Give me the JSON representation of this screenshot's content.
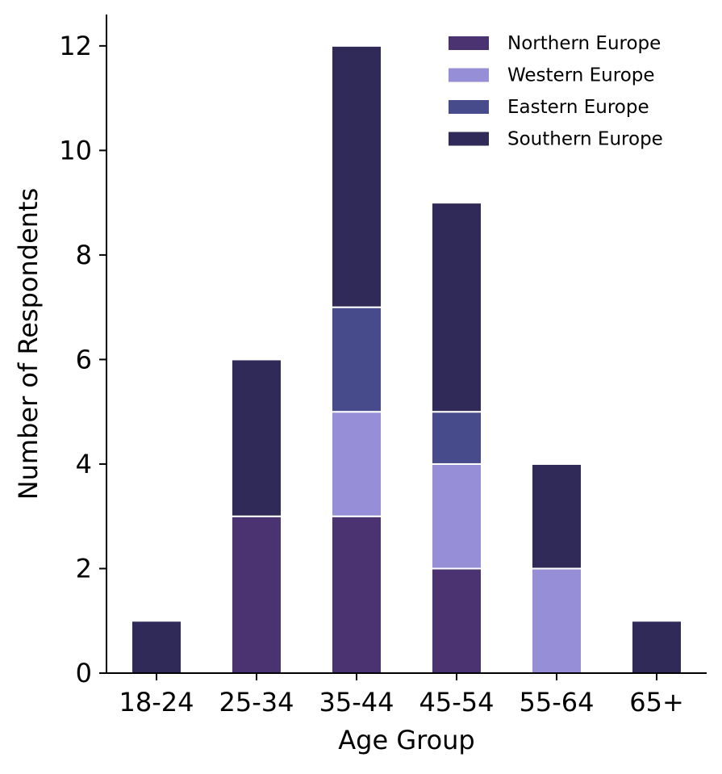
{
  "chart_data": {
    "type": "bar",
    "stacked": true,
    "categories": [
      "18-24",
      "25-34",
      "35-44",
      "45-54",
      "55-64",
      "65+"
    ],
    "series": [
      {
        "name": "Northern Europe",
        "values": [
          0,
          3,
          3,
          2,
          0,
          0
        ],
        "color": "#4b3372"
      },
      {
        "name": "Western Europe",
        "values": [
          0,
          0,
          2,
          2,
          2,
          0
        ],
        "color": "#968fd7"
      },
      {
        "name": "Eastern Europe",
        "values": [
          0,
          0,
          2,
          1,
          0,
          0
        ],
        "color": "#484b8b"
      },
      {
        "name": "Southern Europe",
        "values": [
          1,
          3,
          5,
          4,
          2,
          1
        ],
        "color": "#302a58"
      }
    ],
    "title": "",
    "xlabel": "Age Group",
    "ylabel": "Number of Respondents",
    "ylim": [
      0,
      12.6
    ],
    "yticks": [
      0,
      2,
      4,
      6,
      8,
      10,
      12
    ],
    "grid": false,
    "legend_position": "top-right"
  }
}
